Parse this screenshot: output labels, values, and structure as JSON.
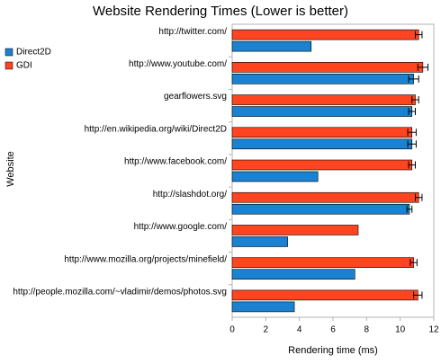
{
  "chart_data": {
    "type": "bar",
    "orientation": "horizontal",
    "title": "Website Rendering Times (Lower is better)",
    "x_label": "Rendering time (ms)",
    "y_label": "Website",
    "categories": [
      "http://twitter.com/",
      "http://www.youtube.com/",
      "gearflowers.svg",
      "http://en.wikipedia.org/wiki/Direct2D",
      "http://www.facebook.com/",
      "http://slashdot.org/",
      "http://www.google.com/",
      "http://www.mozilla.org/projects/minefield/",
      "http://people.mozilla.com/~vladimir/demos/photos.svg"
    ],
    "series": [
      {
        "name": "Direct2D",
        "color": "#1a82d0",
        "values": [
          4.7,
          10.8,
          10.7,
          10.7,
          5.1,
          10.55,
          3.3,
          7.3,
          3.7
        ],
        "errors": [
          null,
          0.3,
          0.2,
          0.25,
          null,
          0.15,
          null,
          null,
          null
        ]
      },
      {
        "name": "GDI",
        "color": "#ff4420",
        "values": [
          11.1,
          11.35,
          10.9,
          10.7,
          10.7,
          11.1,
          7.5,
          10.8,
          11.05
        ],
        "errors": [
          0.2,
          0.3,
          0.2,
          0.25,
          0.2,
          0.2,
          null,
          0.2,
          0.25
        ]
      }
    ],
    "xlim": [
      0,
      12
    ],
    "xticks": [
      0,
      2,
      4,
      6,
      8,
      10,
      12
    ],
    "legend": "left"
  }
}
